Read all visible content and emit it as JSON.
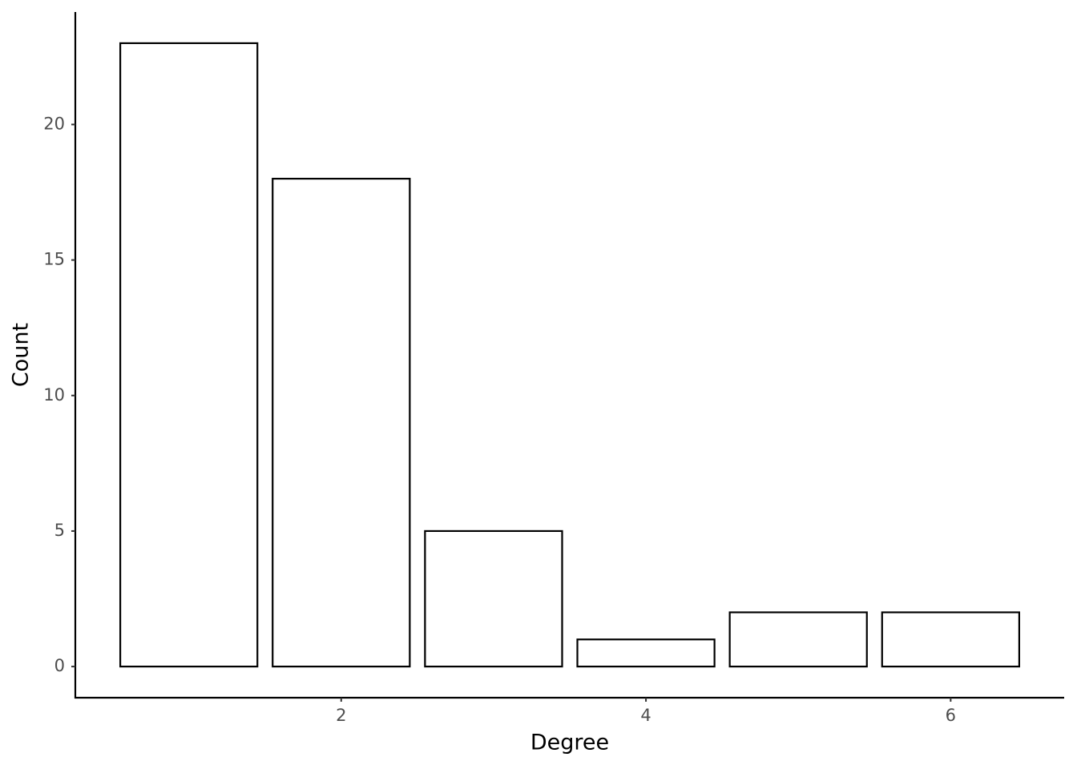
{
  "chart_data": {
    "type": "bar",
    "x_label": "Degree",
    "y_label": "Count",
    "x": [
      1,
      2,
      3,
      4,
      5,
      6
    ],
    "values": [
      23,
      18,
      5,
      1,
      2,
      2
    ],
    "fill": "#ffffff",
    "stroke": "#000000",
    "xlim": [
      0.255,
      6.745
    ],
    "xticks": [
      2,
      4,
      6
    ],
    "ylim": [
      -1.15,
      24.15
    ],
    "yticks": [
      0,
      5,
      10,
      15,
      20
    ],
    "grid": false
  }
}
